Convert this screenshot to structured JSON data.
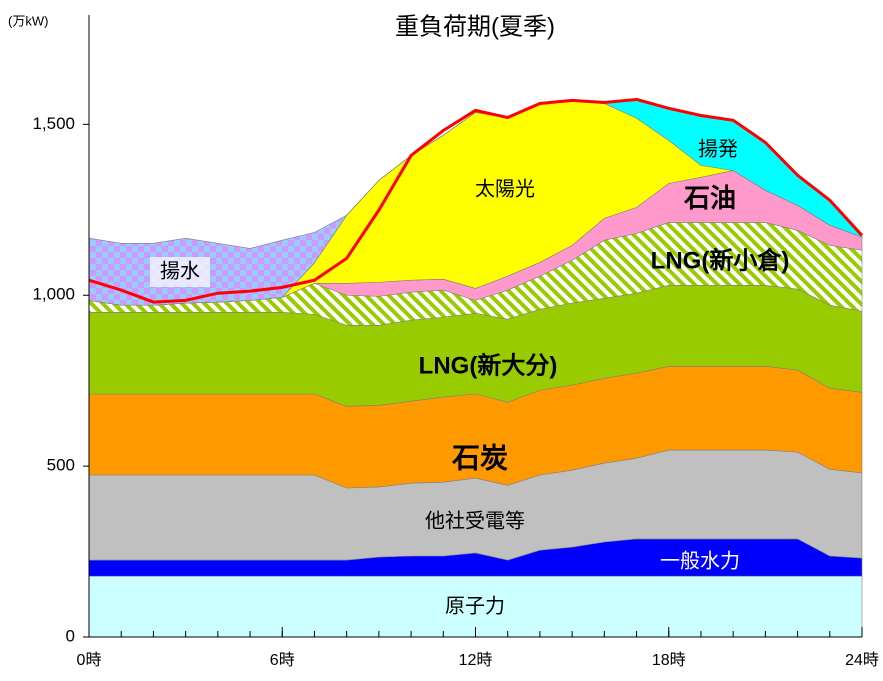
{
  "chart_data": {
    "type": "stacked_area",
    "title": "重負荷期(夏季)",
    "y_unit": "(万kW)",
    "x": [
      0,
      1,
      2,
      3,
      4,
      5,
      6,
      7,
      8,
      9,
      10,
      11,
      12,
      13,
      14,
      15,
      16,
      17,
      18,
      19,
      20,
      21,
      22,
      23,
      24
    ],
    "xlim": [
      0,
      24
    ],
    "xticks": [
      {
        "value": 0,
        "label": "0時"
      },
      {
        "value": 6,
        "label": "6時"
      },
      {
        "value": 12,
        "label": "12時"
      },
      {
        "value": 18,
        "label": "18時"
      },
      {
        "value": 24,
        "label": "24時"
      }
    ],
    "ylim": [
      0,
      1820
    ],
    "yticks": [
      0,
      500,
      {
        "value": 1000,
        "label": "1,000"
      },
      {
        "value": 1500,
        "label": "1,500"
      }
    ],
    "series": [
      {
        "name": "原子力",
        "color": "#ccffff",
        "values": [
          178,
          178,
          178,
          178,
          178,
          178,
          178,
          178,
          178,
          178,
          178,
          178,
          178,
          178,
          178,
          178,
          178,
          178,
          178,
          178,
          178,
          178,
          178,
          178,
          178
        ]
      },
      {
        "name": "一般水力",
        "color": "#0000ff",
        "values": [
          47,
          47,
          47,
          47,
          47,
          47,
          47,
          47,
          47,
          56,
          59,
          59,
          68,
          47,
          76,
          85,
          100,
          109,
          109,
          109,
          109,
          109,
          109,
          59,
          53
        ]
      },
      {
        "name": "他社受電等",
        "color": "#c0c0c0",
        "values": [
          249,
          249,
          249,
          249,
          249,
          249,
          249,
          249,
          211,
          205,
          213,
          216,
          219,
          219,
          220,
          225,
          231,
          236,
          260,
          260,
          260,
          260,
          254,
          254,
          249
        ]
      },
      {
        "name": "石炭",
        "color": "#ff9900",
        "values": [
          237,
          237,
          237,
          237,
          237,
          237,
          237,
          237,
          239,
          239,
          240,
          249,
          246,
          243,
          248,
          249,
          248,
          249,
          245,
          245,
          245,
          245,
          240,
          237,
          236
        ]
      },
      {
        "name": "LNG(新大分)",
        "color": "#99cc00",
        "values": [
          239,
          239,
          239,
          239,
          239,
          239,
          239,
          233,
          237,
          234,
          237,
          234,
          236,
          243,
          237,
          240,
          234,
          234,
          237,
          237,
          237,
          237,
          237,
          243,
          237
        ]
      },
      {
        "name": "LNG(新小倉)",
        "color": "#99cc00",
        "values": [
          35,
          21,
          21,
          27,
          30,
          35,
          44,
          91,
          88,
          85,
          82,
          79,
          38,
          85,
          97,
          125,
          170,
          175,
          184,
          184,
          184,
          184,
          172,
          175,
          179
        ]
      },
      {
        "name": "石油",
        "color": "#ff99cc",
        "values": [
          0,
          0,
          0,
          0,
          0,
          0,
          0,
          0,
          35,
          41,
          35,
          32,
          35,
          41,
          40,
          44,
          64,
          76,
          114,
          132,
          152,
          94,
          73,
          59,
          38
        ]
      },
      {
        "name": "太陽光",
        "color": "#ffff00",
        "values": [
          0,
          0,
          0,
          0,
          0,
          0,
          0,
          60,
          199,
          298,
          365,
          421,
          515,
          464,
          465,
          424,
          336,
          261,
          126,
          35,
          0,
          0,
          0,
          0,
          0
        ]
      },
      {
        "name": "揚発",
        "color": "#00ffff",
        "values": [
          0,
          0,
          0,
          0,
          0,
          0,
          0,
          0,
          0,
          0,
          0,
          0,
          0,
          0,
          0,
          0,
          3,
          55,
          94,
          146,
          147,
          140,
          88,
          73,
          5
        ]
      },
      {
        "name": "揚水",
        "color": "#cc99ff",
        "values": [
          182,
          181,
          181,
          190,
          172,
          152,
          167,
          89,
          0,
          0,
          0,
          0,
          0,
          0,
          0,
          0,
          0,
          0,
          0,
          0,
          0,
          0,
          0,
          0,
          0
        ]
      }
    ],
    "demand_line": {
      "color": "#ff0000",
      "values": [
        1044,
        1015,
        980,
        985,
        1006,
        1012,
        1023,
        1044,
        1108,
        1249,
        1409,
        1482,
        1541,
        1520,
        1561,
        1570,
        1564,
        1573,
        1547,
        1526,
        1512,
        1447,
        1351,
        1278,
        1175
      ]
    }
  }
}
